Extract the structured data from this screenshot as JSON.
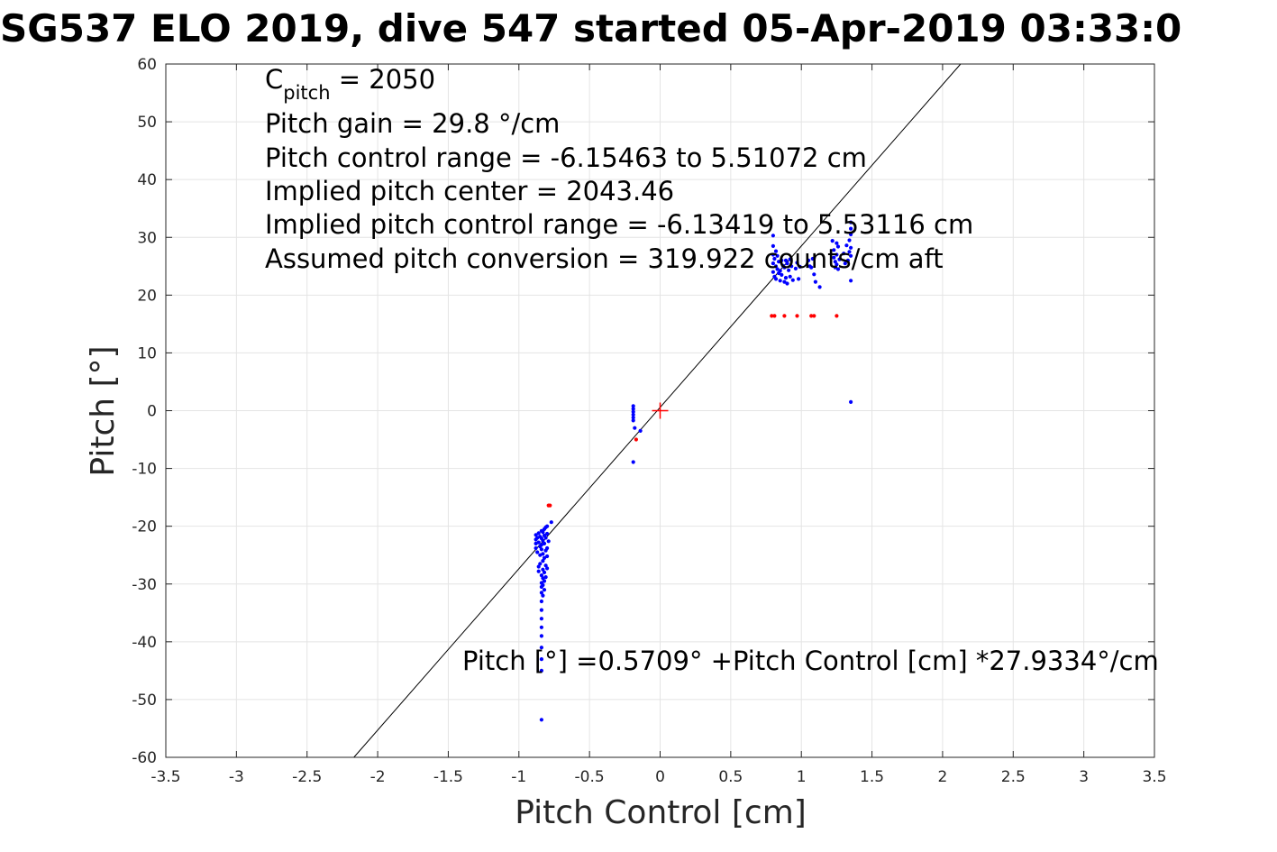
{
  "chart_data": {
    "type": "scatter",
    "title": "SG537 ELO 2019, dive 547 started 05-Apr-2019 03:33:0",
    "xlabel": "Pitch Control [cm]",
    "ylabel": "Pitch [°]",
    "xlim": [
      -3.5,
      3.5
    ],
    "ylim": [
      -60,
      60
    ],
    "xticks": [
      -3.5,
      -3,
      -2.5,
      -2,
      -1.5,
      -1,
      -0.5,
      0,
      0.5,
      1,
      1.5,
      2,
      2.5,
      3,
      3.5
    ],
    "xtick_labels": [
      "-3.5",
      "-3",
      "-2.5",
      "-2",
      "-1.5",
      "-1",
      "-0.5",
      "0",
      "0.5",
      "1",
      "1.5",
      "2",
      "2.5",
      "3",
      "3.5"
    ],
    "yticks": [
      -60,
      -50,
      -40,
      -30,
      -20,
      -10,
      0,
      10,
      20,
      30,
      40,
      50,
      60
    ],
    "ytick_labels": [
      "-60",
      "-50",
      "-40",
      "-30",
      "-20",
      "-10",
      "0",
      "10",
      "20",
      "30",
      "40",
      "50",
      "60"
    ],
    "grid": true,
    "fit_line": {
      "intercept": 0.5709,
      "slope": 27.9334
    },
    "center_marker": {
      "x": 0,
      "y": 0,
      "color": "#ff0000",
      "symbol": "+"
    },
    "annotations": {
      "cpitch_main": "C",
      "cpitch_sub": "pitch",
      "cpitch_value": " = 2050",
      "lines": [
        "Pitch gain = 29.8 °/cm",
        "Pitch control range = -6.15463 to 5.51072 cm",
        "Implied pitch center = 2043.46",
        "Implied pitch control range = -6.13419 to 5.53116 cm",
        "Assumed pitch conversion = 319.922 counts/cm aft"
      ],
      "fit_label": "Pitch [°] =0.5709° +Pitch Control [cm] *27.9334°/cm"
    },
    "series": [
      {
        "color": "#0000ff",
        "points": [
          [
            -0.88,
            -21.5
          ],
          [
            -0.88,
            -22.3
          ],
          [
            -0.88,
            -23.0
          ],
          [
            -0.88,
            -23.8
          ],
          [
            -0.87,
            -22.0
          ],
          [
            -0.87,
            -24.5
          ],
          [
            -0.86,
            -21.2
          ],
          [
            -0.86,
            -22.8
          ],
          [
            -0.86,
            -27.0
          ],
          [
            -0.86,
            -27.8
          ],
          [
            -0.85,
            -21.8
          ],
          [
            -0.85,
            -23.5
          ],
          [
            -0.85,
            -25.0
          ],
          [
            -0.85,
            -26.5
          ],
          [
            -0.84,
            -20.8
          ],
          [
            -0.84,
            -22.1
          ],
          [
            -0.84,
            -23.2
          ],
          [
            -0.84,
            -24.0
          ],
          [
            -0.84,
            -28.5
          ],
          [
            -0.84,
            -29.8
          ],
          [
            -0.84,
            -30.5
          ],
          [
            -0.84,
            -31.5
          ],
          [
            -0.84,
            -33.0
          ],
          [
            -0.84,
            -34.5
          ],
          [
            -0.84,
            -36.0
          ],
          [
            -0.84,
            -37.5
          ],
          [
            -0.84,
            -39.0
          ],
          [
            -0.84,
            -41.0
          ],
          [
            -0.84,
            -43.0
          ],
          [
            -0.84,
            -45.0
          ],
          [
            -0.84,
            -53.5
          ],
          [
            -0.83,
            -21.0
          ],
          [
            -0.83,
            -22.5
          ],
          [
            -0.83,
            -24.8
          ],
          [
            -0.83,
            -26.0
          ],
          [
            -0.83,
            -27.5
          ],
          [
            -0.83,
            -29.0
          ],
          [
            -0.83,
            -30.2
          ],
          [
            -0.83,
            -32.0
          ],
          [
            -0.82,
            -20.5
          ],
          [
            -0.82,
            -21.6
          ],
          [
            -0.82,
            -23.0
          ],
          [
            -0.82,
            -25.5
          ],
          [
            -0.82,
            -28.0
          ],
          [
            -0.82,
            -29.5
          ],
          [
            -0.82,
            -31.0
          ],
          [
            -0.81,
            -20.2
          ],
          [
            -0.81,
            -22.0
          ],
          [
            -0.81,
            -24.2
          ],
          [
            -0.81,
            -26.8
          ],
          [
            -0.81,
            -28.8
          ],
          [
            -0.8,
            -20.0
          ],
          [
            -0.8,
            -21.3
          ],
          [
            -0.8,
            -23.8
          ],
          [
            -0.8,
            -27.3
          ],
          [
            -0.8,
            -25.2
          ],
          [
            -0.79,
            -22.6
          ],
          [
            -0.77,
            -19.3
          ],
          [
            -0.19,
            0.8
          ],
          [
            -0.19,
            0.3
          ],
          [
            -0.19,
            -0.2
          ],
          [
            -0.19,
            -0.7
          ],
          [
            -0.19,
            -1.2
          ],
          [
            -0.19,
            -1.7
          ],
          [
            -0.18,
            -3.0
          ],
          [
            -0.14,
            -3.5
          ],
          [
            -0.19,
            -8.9
          ],
          [
            0.8,
            30.3
          ],
          [
            0.8,
            28.5
          ],
          [
            0.8,
            27.0
          ],
          [
            0.8,
            25.5
          ],
          [
            0.8,
            24.0
          ],
          [
            0.81,
            26.3
          ],
          [
            0.81,
            23.2
          ],
          [
            0.82,
            27.6
          ],
          [
            0.82,
            25.0
          ],
          [
            0.82,
            22.8
          ],
          [
            0.83,
            26.8
          ],
          [
            0.83,
            24.5
          ],
          [
            0.84,
            25.8
          ],
          [
            0.84,
            23.8
          ],
          [
            0.85,
            24.2
          ],
          [
            0.85,
            22.5
          ],
          [
            0.86,
            26.0
          ],
          [
            0.86,
            23.5
          ],
          [
            0.87,
            25.1
          ],
          [
            0.88,
            24.8
          ],
          [
            0.88,
            22.3
          ],
          [
            0.89,
            26.0
          ],
          [
            0.89,
            23.0
          ],
          [
            0.9,
            25.5
          ],
          [
            0.9,
            22.0
          ],
          [
            0.91,
            24.3
          ],
          [
            0.92,
            26.2
          ],
          [
            0.92,
            23.2
          ],
          [
            0.93,
            25.0
          ],
          [
            0.94,
            22.6
          ],
          [
            0.96,
            24.6
          ],
          [
            0.97,
            25.6
          ],
          [
            0.98,
            22.8
          ],
          [
            0.99,
            24.9
          ],
          [
            1.05,
            26.0
          ],
          [
            1.06,
            25.0
          ],
          [
            1.07,
            24.8
          ],
          [
            1.08,
            26.3
          ],
          [
            1.09,
            23.6
          ],
          [
            1.1,
            22.3
          ],
          [
            1.13,
            21.4
          ],
          [
            1.22,
            29.4
          ],
          [
            1.23,
            27.8
          ],
          [
            1.23,
            26.5
          ],
          [
            1.24,
            25.8
          ],
          [
            1.24,
            24.8
          ],
          [
            1.25,
            29.0
          ],
          [
            1.25,
            27.0
          ],
          [
            1.25,
            25.3
          ],
          [
            1.26,
            28.4
          ],
          [
            1.26,
            24.5
          ],
          [
            1.27,
            26.2
          ],
          [
            1.3,
            27.2
          ],
          [
            1.31,
            25.5
          ],
          [
            1.32,
            28.6
          ],
          [
            1.33,
            26.0
          ],
          [
            1.34,
            27.5
          ],
          [
            1.34,
            29.5
          ],
          [
            1.35,
            30.5
          ],
          [
            1.35,
            31.5
          ],
          [
            1.35,
            32.6
          ],
          [
            1.35,
            28.2
          ],
          [
            1.35,
            26.8
          ],
          [
            1.35,
            22.5
          ],
          [
            1.35,
            1.5
          ]
        ]
      },
      {
        "color": "#ff0000",
        "points": [
          [
            -0.79,
            -16.4
          ],
          [
            -0.78,
            -16.4
          ],
          [
            -0.17,
            -5.0
          ],
          [
            0.79,
            16.4
          ],
          [
            0.81,
            16.4
          ],
          [
            0.88,
            16.4
          ],
          [
            0.97,
            16.4
          ],
          [
            1.07,
            16.4
          ],
          [
            1.09,
            16.4
          ],
          [
            1.25,
            16.4
          ]
        ]
      }
    ]
  }
}
